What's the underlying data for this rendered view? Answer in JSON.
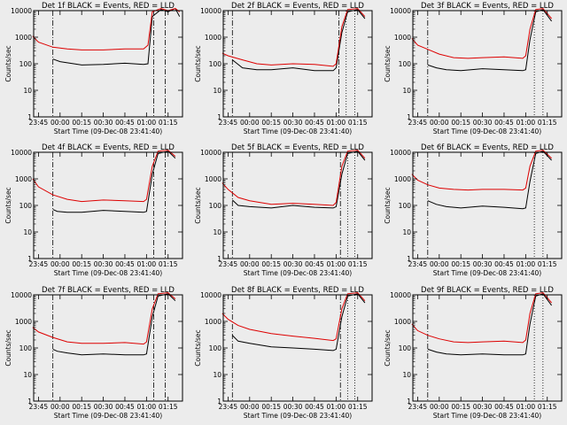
{
  "xlabel": "Start Time (09-Dec-08 23:41:40)",
  "ylabel": "Counts/sec",
  "x_ticks": [
    "23:45",
    "00:00",
    "00:15",
    "00:30",
    "00:45",
    "01:00",
    "01:15"
  ],
  "y_ticks": [
    "1",
    "10",
    "100",
    "1000",
    "10000"
  ],
  "colors": {
    "events": "#000000",
    "lld": "#dd0000",
    "frame": "#000000",
    "background": "#ececec"
  },
  "chart_data": [
    {
      "type": "line",
      "title": "Det 1f BLACK = Events, RED = LLD",
      "xlim": [
        "23:41:40",
        "01:25"
      ],
      "ylim": [
        1,
        10000
      ],
      "yscale": "log",
      "dashdot_markers": [
        "23:55",
        "01:05",
        "01:13"
      ],
      "dotted_markers": [],
      "series": [
        {
          "x": [
            "23:55",
            "00:00",
            "00:15",
            "00:30",
            "00:45",
            "00:58",
            "01:01",
            "01:04",
            "01:10",
            "01:15",
            "01:20",
            "01:23"
          ],
          "y": [
            150,
            120,
            90,
            95,
            105,
            95,
            100,
            6000,
            11000,
            9000,
            12000,
            6000
          ]
        },
        {
          "x": [
            "23:41",
            "23:45",
            "23:55",
            "00:05",
            "00:15",
            "00:30",
            "00:45",
            "00:58",
            "01:01",
            "01:04",
            "01:10",
            "01:15",
            "01:20",
            "01:23"
          ],
          "y": [
            1100,
            650,
            420,
            360,
            330,
            330,
            360,
            360,
            500,
            9000,
            12000,
            10000,
            12000,
            9000
          ]
        }
      ]
    },
    {
      "type": "line",
      "title": "Det 2f BLACK = Events, RED = LLD",
      "xlim": [
        "23:41:40",
        "01:25"
      ],
      "ylim": [
        1,
        10000
      ],
      "yscale": "log",
      "dashdot_markers": [
        "23:48",
        "01:02"
      ],
      "dotted_markers": [
        "01:07",
        "01:13"
      ],
      "series": [
        {
          "x": [
            "23:48",
            "23:55",
            "00:05",
            "00:15",
            "00:30",
            "00:45",
            "00:58",
            "01:00",
            "01:04",
            "01:08",
            "01:15",
            "01:20"
          ],
          "y": [
            140,
            70,
            60,
            60,
            70,
            55,
            55,
            70,
            1500,
            9000,
            11000,
            5000
          ]
        },
        {
          "x": [
            "23:41",
            "23:45",
            "23:55",
            "00:05",
            "00:15",
            "00:30",
            "00:45",
            "00:58",
            "01:00",
            "01:04",
            "01:08",
            "01:15",
            "01:20"
          ],
          "y": [
            250,
            200,
            140,
            100,
            90,
            100,
            95,
            80,
            100,
            2500,
            11000,
            12000,
            6000
          ]
        }
      ]
    },
    {
      "type": "line",
      "title": "Det 3f BLACK = Events, RED = LLD",
      "xlim": [
        "23:41:40",
        "01:25"
      ],
      "ylim": [
        1,
        10000
      ],
      "yscale": "log",
      "dashdot_markers": [
        "23:52"
      ],
      "dotted_markers": [
        "01:06",
        "01:12"
      ],
      "series": [
        {
          "x": [
            "23:52",
            "23:58",
            "00:05",
            "00:15",
            "00:30",
            "00:45",
            "00:58",
            "01:00",
            "01:03",
            "01:07",
            "01:12",
            "01:18"
          ],
          "y": [
            90,
            70,
            60,
            55,
            65,
            60,
            55,
            60,
            800,
            9000,
            11000,
            4000
          ]
        },
        {
          "x": [
            "23:41",
            "23:45",
            "23:52",
            "00:00",
            "00:10",
            "00:20",
            "00:30",
            "00:45",
            "00:58",
            "01:00",
            "01:03",
            "01:07",
            "01:12",
            "01:18"
          ],
          "y": [
            900,
            500,
            350,
            230,
            170,
            160,
            170,
            180,
            160,
            200,
            2000,
            11000,
            12000,
            5000
          ]
        }
      ]
    },
    {
      "type": "line",
      "title": "Det 4f BLACK = Events, RED = LLD",
      "xlim": [
        "23:41:40",
        "01:25"
      ],
      "ylim": [
        1,
        10000
      ],
      "yscale": "log",
      "dashdot_markers": [
        "23:55",
        "01:05",
        "01:13"
      ],
      "dotted_markers": [],
      "series": [
        {
          "x": [
            "23:55",
            "23:58",
            "00:05",
            "00:15",
            "00:30",
            "00:45",
            "00:58",
            "01:00",
            "01:04",
            "01:08",
            "01:15",
            "01:20"
          ],
          "y": [
            70,
            60,
            55,
            55,
            65,
            60,
            55,
            60,
            1500,
            9000,
            11000,
            6000
          ]
        },
        {
          "x": [
            "23:41",
            "23:45",
            "23:55",
            "00:05",
            "00:15",
            "00:30",
            "00:45",
            "00:58",
            "01:00",
            "01:04",
            "01:08",
            "01:15",
            "01:20"
          ],
          "y": [
            1000,
            500,
            250,
            170,
            140,
            160,
            150,
            140,
            170,
            3000,
            11000,
            12000,
            7000
          ]
        }
      ]
    },
    {
      "type": "line",
      "title": "Det 5f BLACK = Events, RED = LLD",
      "xlim": [
        "23:41:40",
        "01:25"
      ],
      "ylim": [
        1,
        10000
      ],
      "yscale": "log",
      "dashdot_markers": [
        "23:48",
        "01:03"
      ],
      "dotted_markers": [
        "01:08",
        "01:13"
      ],
      "series": [
        {
          "x": [
            "23:48",
            "23:52",
            "00:00",
            "00:15",
            "00:30",
            "00:45",
            "00:58",
            "01:00",
            "01:04",
            "01:08",
            "01:15",
            "01:20"
          ],
          "y": [
            160,
            100,
            90,
            80,
            100,
            85,
            80,
            90,
            1500,
            9000,
            11000,
            5000
          ]
        },
        {
          "x": [
            "23:41",
            "23:45",
            "23:52",
            "00:00",
            "00:15",
            "00:30",
            "00:45",
            "00:58",
            "01:00",
            "01:04",
            "01:08",
            "01:15",
            "01:20"
          ],
          "y": [
            700,
            400,
            200,
            150,
            110,
            120,
            110,
            100,
            130,
            3000,
            11000,
            12000,
            6000
          ]
        }
      ]
    },
    {
      "type": "line",
      "title": "Det 6f BLACK = Events, RED = LLD",
      "xlim": [
        "23:41:40",
        "01:25"
      ],
      "ylim": [
        1,
        10000
      ],
      "yscale": "log",
      "dashdot_markers": [
        "23:52"
      ],
      "dotted_markers": [
        "01:06",
        "01:12"
      ],
      "series": [
        {
          "x": [
            "23:52",
            "23:58",
            "00:05",
            "00:15",
            "00:30",
            "00:45",
            "00:58",
            "01:00",
            "01:03",
            "01:07",
            "01:12",
            "01:18"
          ],
          "y": [
            150,
            110,
            90,
            80,
            95,
            85,
            75,
            80,
            800,
            9000,
            11000,
            5000
          ]
        },
        {
          "x": [
            "23:41",
            "23:45",
            "23:52",
            "00:00",
            "00:10",
            "00:20",
            "00:30",
            "00:45",
            "00:58",
            "01:00",
            "01:03",
            "01:07",
            "01:12",
            "01:18"
          ],
          "y": [
            1500,
            900,
            600,
            450,
            400,
            380,
            400,
            400,
            380,
            450,
            3000,
            11000,
            12000,
            6000
          ]
        }
      ]
    },
    {
      "type": "line",
      "title": "Det 7f BLACK = Events, RED = LLD",
      "xlim": [
        "23:41:40",
        "01:25"
      ],
      "ylim": [
        1,
        10000
      ],
      "yscale": "log",
      "dashdot_markers": [
        "23:55",
        "01:05",
        "01:13"
      ],
      "dotted_markers": [],
      "series": [
        {
          "x": [
            "23:55",
            "23:58",
            "00:05",
            "00:15",
            "00:30",
            "00:45",
            "00:58",
            "01:00",
            "01:04",
            "01:08",
            "01:15",
            "01:20"
          ],
          "y": [
            90,
            75,
            65,
            55,
            60,
            55,
            55,
            60,
            1500,
            9000,
            11000,
            6000
          ]
        },
        {
          "x": [
            "23:41",
            "23:45",
            "23:55",
            "00:05",
            "00:15",
            "00:30",
            "00:45",
            "00:58",
            "01:00",
            "01:04",
            "01:08",
            "01:15",
            "01:20"
          ],
          "y": [
            600,
            400,
            250,
            170,
            150,
            150,
            160,
            140,
            170,
            3000,
            11000,
            12000,
            7000
          ]
        }
      ]
    },
    {
      "type": "line",
      "title": "Det 8f BLACK = Events, RED = LLD",
      "xlim": [
        "23:41:40",
        "01:25"
      ],
      "ylim": [
        1,
        10000
      ],
      "yscale": "log",
      "dashdot_markers": [
        "23:48",
        "01:03"
      ],
      "dotted_markers": [
        "01:08",
        "01:13"
      ],
      "series": [
        {
          "x": [
            "23:48",
            "23:52",
            "00:00",
            "00:15",
            "00:30",
            "00:45",
            "00:58",
            "01:00",
            "01:04",
            "01:08",
            "01:15",
            "01:20"
          ],
          "y": [
            300,
            180,
            150,
            110,
            100,
            90,
            80,
            90,
            1500,
            9000,
            11000,
            5000
          ]
        },
        {
          "x": [
            "23:41",
            "23:45",
            "23:52",
            "00:00",
            "00:15",
            "00:30",
            "00:45",
            "00:58",
            "01:00",
            "01:04",
            "01:08",
            "01:15",
            "01:20"
          ],
          "y": [
            2000,
            1200,
            700,
            500,
            350,
            280,
            230,
            190,
            220,
            3000,
            11000,
            12000,
            6000
          ]
        }
      ]
    },
    {
      "type": "line",
      "title": "Det 9f BLACK = Events, RED = LLD",
      "xlim": [
        "23:41:40",
        "01:25"
      ],
      "ylim": [
        1,
        10000
      ],
      "yscale": "log",
      "dashdot_markers": [
        "23:52"
      ],
      "dotted_markers": [
        "01:06",
        "01:12"
      ],
      "series": [
        {
          "x": [
            "23:52",
            "23:58",
            "00:05",
            "00:15",
            "00:30",
            "00:45",
            "00:58",
            "01:00",
            "01:03",
            "01:07",
            "01:12",
            "01:18"
          ],
          "y": [
            90,
            70,
            60,
            55,
            60,
            55,
            55,
            60,
            800,
            9000,
            11000,
            4000
          ]
        },
        {
          "x": [
            "23:41",
            "23:45",
            "23:52",
            "00:00",
            "00:10",
            "00:20",
            "00:30",
            "00:45",
            "00:58",
            "01:00",
            "01:03",
            "01:07",
            "01:12",
            "01:18"
          ],
          "y": [
            800,
            450,
            300,
            220,
            170,
            160,
            170,
            180,
            160,
            200,
            2000,
            11000,
            12000,
            5000
          ]
        }
      ]
    }
  ]
}
